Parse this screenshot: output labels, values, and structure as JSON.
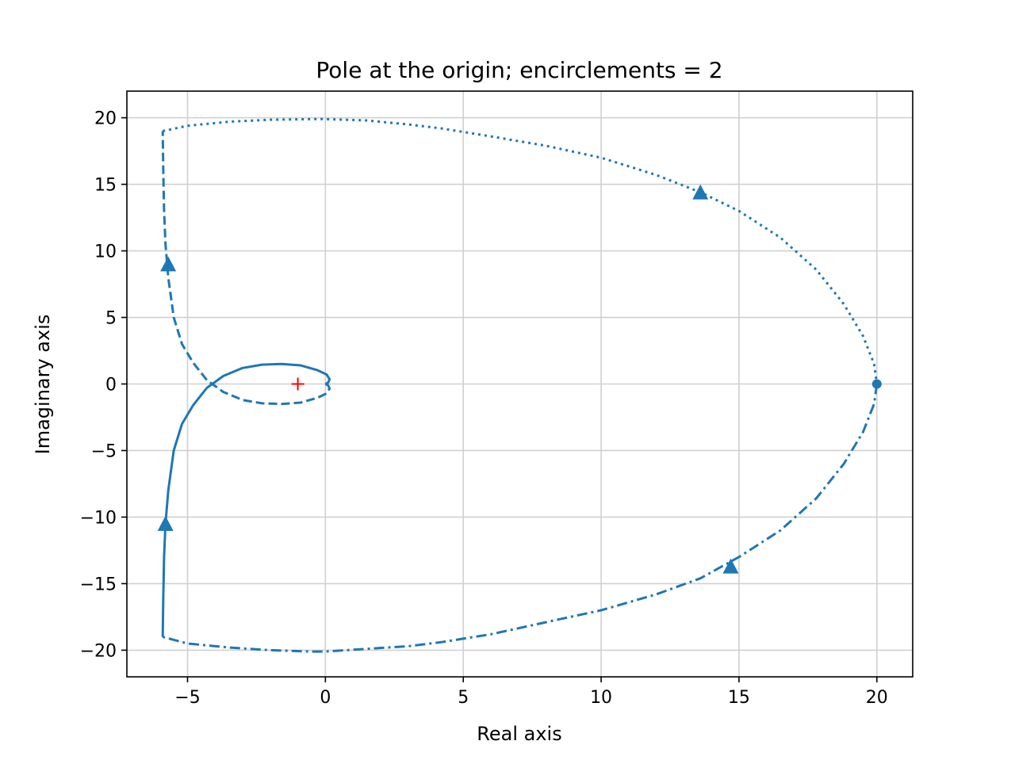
{
  "chart_data": {
    "type": "line",
    "title": "Pole at the origin; encirclements = 2",
    "xlabel": "Real axis",
    "ylabel": "Imaginary axis",
    "xlim": [
      -7.2,
      21.3
    ],
    "ylim": [
      -22,
      22
    ],
    "xticks": [
      -5,
      0,
      5,
      10,
      15,
      20
    ],
    "yticks": [
      -20,
      -15,
      -10,
      -5,
      0,
      5,
      10,
      15,
      20
    ],
    "xtick_labels": [
      "−5",
      "0",
      "5",
      "10",
      "15",
      "20"
    ],
    "ytick_labels": [
      "−20",
      "−15",
      "−10",
      "−5",
      "0",
      "5",
      "10",
      "15",
      "20"
    ],
    "grid": true,
    "color": "#1f77b4",
    "critical_point": {
      "x": -1,
      "y": 0,
      "marker": "+",
      "color": "#ff0000"
    },
    "start_point": {
      "x": 20,
      "y": 0,
      "marker": "o"
    },
    "series": [
      {
        "linestyle": "solid",
        "x": [
          -5.9,
          -5.88,
          -5.85,
          -5.8,
          -5.7,
          -5.5,
          -5.2,
          -4.8,
          -4.3,
          -3.7,
          -3.0,
          -2.3,
          -1.6,
          -0.9,
          -0.3,
          0.05,
          0.15,
          0.1,
          0.0
        ],
        "y": [
          -19.0,
          -16.0,
          -13.0,
          -10.5,
          -8.0,
          -5.0,
          -3.0,
          -1.6,
          -0.3,
          0.6,
          1.2,
          1.45,
          1.5,
          1.4,
          1.05,
          0.7,
          0.35,
          0.1,
          0.0
        ]
      },
      {
        "linestyle": "dashed",
        "x": [
          0.0,
          0.1,
          0.15,
          0.05,
          -0.3,
          -0.9,
          -1.6,
          -2.3,
          -3.0,
          -3.7,
          -4.3,
          -4.8,
          -5.2,
          -5.5,
          -5.7,
          -5.8,
          -5.85,
          -5.88,
          -5.9
        ],
        "y": [
          0.0,
          -0.1,
          -0.35,
          -0.7,
          -1.05,
          -1.4,
          -1.5,
          -1.45,
          -1.2,
          -0.6,
          0.3,
          1.6,
          3.0,
          5.0,
          8.0,
          10.5,
          13.0,
          16.0,
          19.0
        ]
      },
      {
        "linestyle": "dotted",
        "x": [
          -5.9,
          -5.0,
          -3.5,
          -2.0,
          -0.5,
          0.0,
          1.5,
          3.0,
          4.2,
          6.0,
          8.0,
          10.0,
          12.0,
          13.6,
          15.0,
          16.5,
          17.8,
          18.8,
          19.5,
          19.9,
          20.0
        ],
        "y": [
          19.0,
          19.4,
          19.7,
          19.85,
          19.9,
          19.9,
          19.8,
          19.5,
          19.2,
          18.6,
          17.9,
          17.0,
          15.7,
          14.4,
          13.0,
          11.0,
          8.6,
          6.0,
          3.6,
          1.5,
          0.0
        ]
      },
      {
        "linestyle": "dashdot",
        "x": [
          20.0,
          19.9,
          19.5,
          18.8,
          17.8,
          16.5,
          15.0,
          13.6,
          12.0,
          10.0,
          8.0,
          6.0,
          4.2,
          3.0,
          1.5,
          0.0,
          -0.5,
          -2.0,
          -3.5,
          -5.0,
          -5.9
        ],
        "y": [
          0.0,
          -1.5,
          -3.6,
          -6.0,
          -8.6,
          -11.0,
          -13.0,
          -14.6,
          -15.8,
          -17.0,
          -17.9,
          -18.8,
          -19.4,
          -19.7,
          -19.9,
          -20.1,
          -20.1,
          -20.0,
          -19.8,
          -19.5,
          -19.0
        ]
      }
    ],
    "arrows": [
      {
        "x": -5.8,
        "y": -10.5,
        "direction": "up"
      },
      {
        "x": -5.7,
        "y": 9.0,
        "direction": "up"
      },
      {
        "x": 13.6,
        "y": 14.4,
        "direction": "up"
      },
      {
        "x": 14.7,
        "y": -13.7,
        "direction": "up"
      }
    ]
  }
}
